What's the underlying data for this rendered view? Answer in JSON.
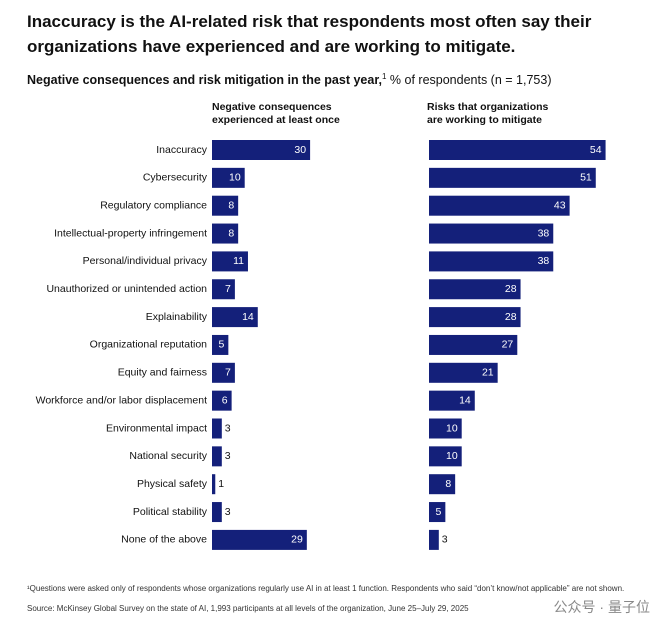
{
  "chart_data": {
    "type": "bar",
    "orientation": "horizontal",
    "title": "Inaccuracy is the AI-related risk that respondents most often say their organizations have experienced and are working to mitigate.",
    "subtitle": "Negative consequences and risk mitigation in the past year,",
    "subtitle_note": "1",
    "subtitle_unit": "% of respondents (n = 1,753)",
    "categories": [
      "Inaccuracy",
      "Cybersecurity",
      "Regulatory compliance",
      "Intellectual-property infringement",
      "Personal/individual privacy",
      "Unauthorized or unintended action",
      "Explainability",
      "Organizational reputation",
      "Equity and fairness",
      "Workforce and/or labor displacement",
      "Environmental impact",
      "National security",
      "Physical safety",
      "Political stability",
      "None of the above"
    ],
    "series": [
      {
        "name": "Negative consequences experienced at least once",
        "color": "#14207a",
        "values": [
          30,
          10,
          8,
          8,
          11,
          7,
          14,
          5,
          7,
          6,
          3,
          3,
          1,
          3,
          29
        ]
      },
      {
        "name": "Risks that organizations are working to mitigate",
        "color": "#14207a",
        "values": [
          54,
          51,
          43,
          38,
          38,
          28,
          28,
          27,
          21,
          14,
          10,
          10,
          8,
          5,
          3
        ]
      }
    ],
    "footnote": "¹Questions were asked only of respondents whose organizations regularly use AI in at least 1 function. Respondents who said “don’t know/not applicable” are not shown.",
    "source": "Source: McKinsey Global Survey on the state of AI, 1,993 participants at all levels of the organization, June 25–July 29, 2025",
    "watermark": "公众号 · 量子位"
  }
}
